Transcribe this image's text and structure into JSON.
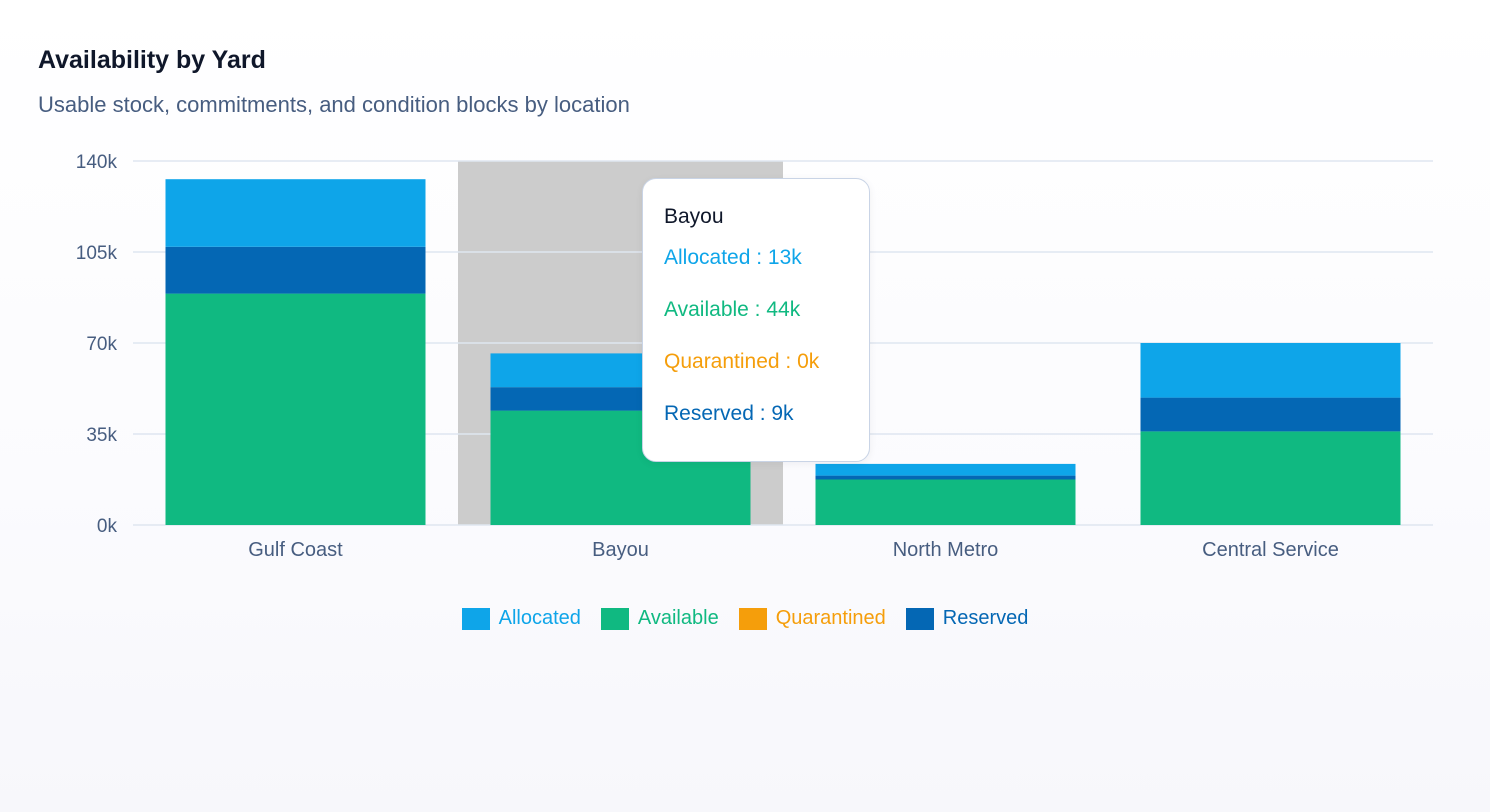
{
  "header": {
    "title": "Availability by Yard",
    "subtitle": "Usable stock, commitments, and condition blocks by location"
  },
  "colors": {
    "allocated": "#0ea5e9",
    "available": "#10b981",
    "quarantined": "#f59e0b",
    "reserved": "#0467b4",
    "grid": "#dfe6f0",
    "hover_band": "#cccccc"
  },
  "chart_data": {
    "type": "bar",
    "stacked": true,
    "categories": [
      "Gulf Coast",
      "Bayou",
      "North Metro",
      "Central Service"
    ],
    "series": [
      {
        "name": "Available",
        "key": "available",
        "values": [
          89000,
          44000,
          17500,
          36000
        ]
      },
      {
        "name": "Reserved",
        "key": "reserved",
        "values": [
          18000,
          9000,
          1500,
          13000
        ]
      },
      {
        "name": "Quarantined",
        "key": "quarantined",
        "values": [
          0,
          0,
          0,
          0
        ]
      },
      {
        "name": "Allocated",
        "key": "allocated",
        "values": [
          26000,
          13000,
          4500,
          21000
        ]
      }
    ],
    "yticks": [
      "0k",
      "35k",
      "70k",
      "105k",
      "140k"
    ],
    "ylim": [
      0,
      140000
    ],
    "grid": true,
    "legend_position": "bottom-center",
    "highlighted_category": "Bayou"
  },
  "tooltip": {
    "title": "Bayou",
    "rows": [
      {
        "label": "Allocated : 13k",
        "key": "allocated"
      },
      {
        "label": "Available : 44k",
        "key": "available"
      },
      {
        "label": "Quarantined : 0k",
        "key": "quarantined"
      },
      {
        "label": "Reserved : 9k",
        "key": "reserved"
      }
    ]
  },
  "legend": [
    {
      "label": "Allocated",
      "key": "allocated"
    },
    {
      "label": "Available",
      "key": "available"
    },
    {
      "label": "Quarantined",
      "key": "quarantined"
    },
    {
      "label": "Reserved",
      "key": "reserved"
    }
  ]
}
